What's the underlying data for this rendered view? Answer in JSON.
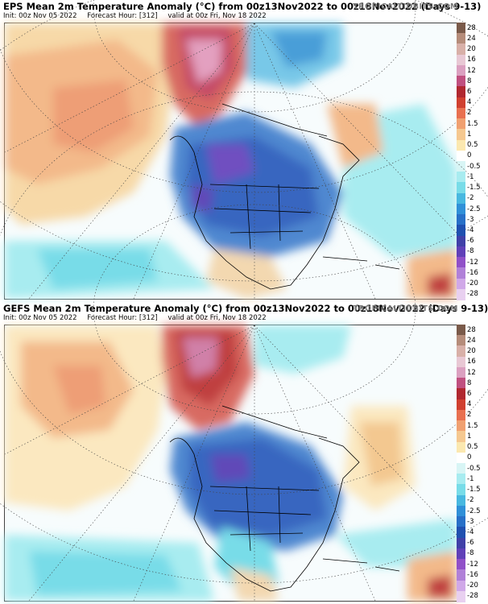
{
  "panels": [
    {
      "title": "EPS Mean 2m Temperature Anomaly (°C) from 00z13Nov2022 to 00z18Nov2022 (Days 9-13)",
      "brand": "TROPICALTIDBITS.COM",
      "init": "Init: 00z Nov 05 2022",
      "forecast_hour": "Forecast Hour: [312]",
      "valid": "valid at 00z Fri, Nov 18 2022"
    },
    {
      "title": "GEFS Mean 2m Temperature Anomaly (°C) from 00z13Nov2022 to 00z18Nov2022 (Days 9-13)",
      "brand": "TROPICALTIDBITS.COM",
      "init": "Init: 00z Nov 05 2022",
      "forecast_hour": "Forecast Hour: [312]",
      "valid": "valid at 00z Fri, Nov 18 2022"
    }
  ],
  "colorbar": {
    "labels": [
      "28",
      "24",
      "20",
      "16",
      "12",
      "8",
      "6",
      "4",
      "2",
      "1.5",
      "1",
      "0.5",
      "0",
      "-0.5",
      "-1",
      "-1.5",
      "-2",
      "-2.5",
      "-3",
      "-4",
      "-6",
      "-8",
      "-12",
      "-16",
      "-20",
      "-28"
    ],
    "colors": [
      "#7a5a4a",
      "#b58c7a",
      "#d8b0a8",
      "#e8c8d4",
      "#dba0c0",
      "#c05080",
      "#b02830",
      "#d04030",
      "#e87050",
      "#f0a070",
      "#f5c890",
      "#fbe8b0",
      "#ffffff",
      "#d8f5f5",
      "#a8ecf0",
      "#78dce8",
      "#48b8e0",
      "#3090d8",
      "#2870c8",
      "#2050b0",
      "#4040a8",
      "#6040b8",
      "#9050c8",
      "#b080d8",
      "#d0a8e8",
      "#e8d0f0"
    ]
  }
}
